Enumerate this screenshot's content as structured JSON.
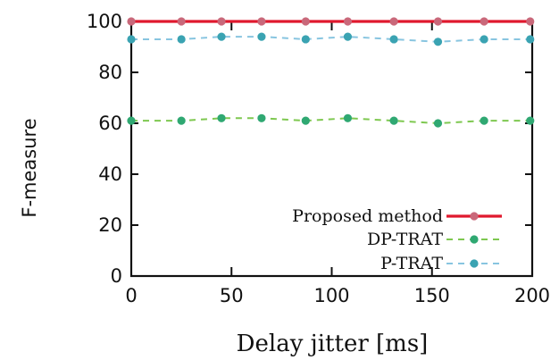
{
  "chart_data": {
    "type": "line",
    "title": "",
    "xlabel": "Delay jitter [ms]",
    "ylabel": "F-measure",
    "xlim": [
      0,
      200
    ],
    "ylim": [
      0,
      100
    ],
    "xticks": [
      0,
      50,
      100,
      150,
      200
    ],
    "yticks": [
      0,
      20,
      40,
      60,
      80,
      100
    ],
    "grid": false,
    "legend_position": "bottom-right",
    "x": [
      0,
      25,
      45,
      65,
      87,
      108,
      131,
      153,
      176,
      199
    ],
    "series": [
      {
        "name": "Proposed method",
        "color": "#e0192e",
        "marker_color": "#c9687a",
        "style": "solid",
        "values": [
          100,
          100,
          100,
          100,
          100,
          100,
          100,
          100,
          100,
          100
        ]
      },
      {
        "name": "DP-TRAT",
        "color": "#7ec850",
        "marker_color": "#2fa872",
        "style": "dashed",
        "values": [
          61,
          61,
          62,
          62,
          61,
          62,
          61,
          60,
          61,
          61
        ]
      },
      {
        "name": "P-TRAT",
        "color": "#88c5e0",
        "marker_color": "#3aa3b2",
        "style": "dashed",
        "values": [
          93,
          93,
          94,
          94,
          93,
          94,
          93,
          92,
          93,
          93
        ]
      }
    ]
  }
}
